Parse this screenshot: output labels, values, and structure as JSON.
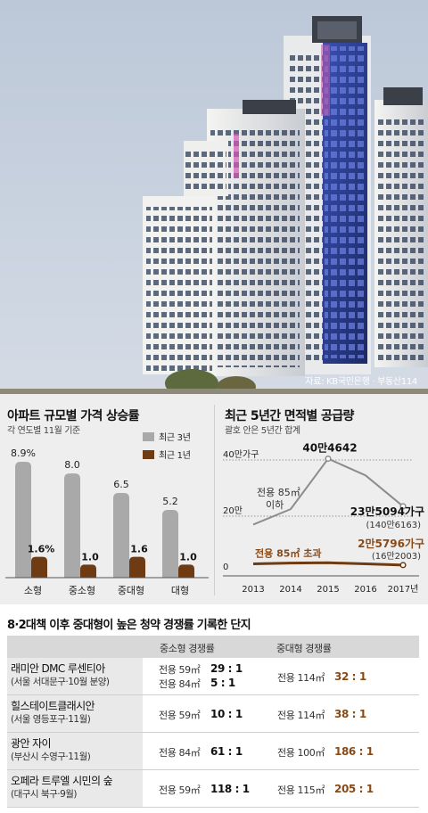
{
  "photo": {
    "credit": "자료: KB국민은행 · 부동산114"
  },
  "bar_chart_box": {
    "legend": [
      {
        "label": "최근 3년",
        "color": "#a9a9a9"
      },
      {
        "label": "최근 1년",
        "color": "#6e3b12"
      }
    ]
  },
  "line_chart_box": {
    "notes": {
      "peak_label": "40만4642",
      "small_label_line1": "전용 85㎡",
      "small_label_line2": "이하",
      "small_end_main": "23만5094가구",
      "small_end_sub": "(140만6163)",
      "large_end_main": "2만5796가구",
      "large_end_sub": "(16만2003)",
      "large_series_label": "전용 85㎡ 초과"
    }
  },
  "chart_data": [
    {
      "type": "bar",
      "title": "아파트 규모별 가격 상승률",
      "subtitle": "각 연도별 11월 기준",
      "categories": [
        "소형",
        "중소형",
        "중대형",
        "대형"
      ],
      "series": [
        {
          "name": "최근 3년",
          "values": [
            8.9,
            8.0,
            6.5,
            5.2
          ],
          "labels": [
            "8.9%",
            "8.0",
            "6.5",
            "5.2"
          ]
        },
        {
          "name": "최근 1년",
          "values": [
            1.6,
            1.0,
            1.6,
            1.0
          ],
          "labels": [
            "1.6%",
            "1.0",
            "1.6",
            "1.0"
          ]
        }
      ],
      "ylim": [
        0,
        10
      ],
      "legend_position": "top-right"
    },
    {
      "type": "line",
      "title": "최근 5년간 면적별 공급량",
      "subtitle": "괄호 안은 5년간 합계",
      "x": [
        "2013",
        "2014",
        "2015",
        "2016",
        "2017년"
      ],
      "yticks": [
        {
          "value": 0,
          "label": "0"
        },
        {
          "value": 200000,
          "label": "20만"
        },
        {
          "value": 400000,
          "label": "40만가구"
        }
      ],
      "ylim": [
        0,
        400000
      ],
      "series": [
        {
          "values": [
            170000,
            225000,
            404642,
            345000,
            235094
          ],
          "color": "#8c8c8c"
        },
        {
          "values": [
            30000,
            33000,
            34000,
            30000,
            25796
          ],
          "color": "#6e3b12"
        }
      ]
    }
  ],
  "table": {
    "title": "8·2대책 이후 중대형이 높은 청약 경쟁률 기록한 단지",
    "headers": {
      "small": "중소형 경쟁률",
      "mid": "중대형 경쟁률"
    },
    "rows": [
      {
        "name": "래미안 DMC 루센티아",
        "location": "(서울 서대문구·10월 분양)",
        "small": [
          {
            "area": "전용 59㎡",
            "ratio": "29 : 1"
          },
          {
            "area": "전용 84㎡",
            "ratio": "5 : 1"
          }
        ],
        "mid": {
          "area": "전용 114㎡",
          "ratio": "32 : 1"
        }
      },
      {
        "name": "힐스테이트클래시안",
        "location": "(서울 영등포구·11월)",
        "small": [
          {
            "area": "전용 59㎡",
            "ratio": "10 : 1"
          }
        ],
        "mid": {
          "area": "전용 114㎡",
          "ratio": "38 : 1"
        }
      },
      {
        "name": "광안 자이",
        "location": "(부산시 수영구·11월)",
        "small": [
          {
            "area": "전용 84㎡",
            "ratio": "61 : 1"
          }
        ],
        "mid": {
          "area": "전용 100㎡",
          "ratio": "186 : 1"
        }
      },
      {
        "name": "오페라 트루엘 시민의 숲",
        "location": "(대구시 북구·9월)",
        "small": [
          {
            "area": "전용 59㎡",
            "ratio": "118 : 1"
          }
        ],
        "mid": {
          "area": "전용 115㎡",
          "ratio": "205 : 1"
        }
      }
    ]
  }
}
